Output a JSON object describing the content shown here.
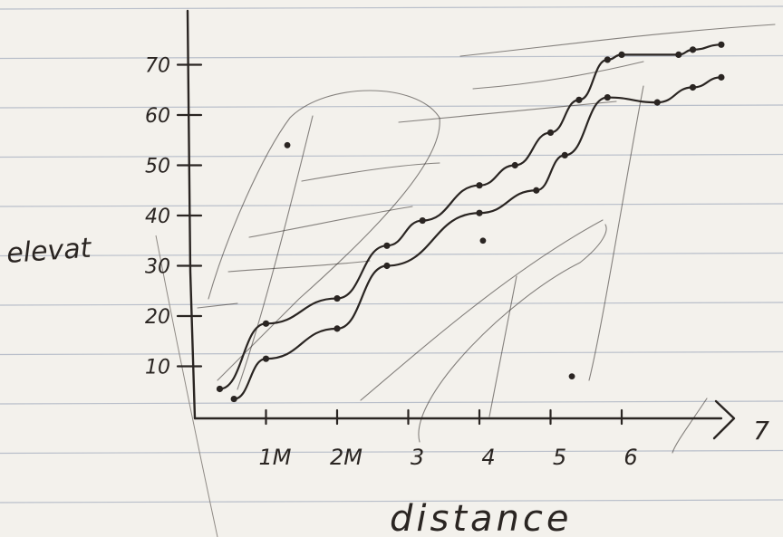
{
  "chart_data": {
    "type": "line",
    "title": "",
    "xlabel": "distance",
    "ylabel": "elevat",
    "x_ticks": [
      {
        "value": 1,
        "label": "1M"
      },
      {
        "value": 2,
        "label": "2M"
      },
      {
        "value": 3,
        "label": "3"
      },
      {
        "value": 4,
        "label": "4"
      },
      {
        "value": 5,
        "label": "5"
      },
      {
        "value": 6,
        "label": "6"
      }
    ],
    "x_end_label": "7",
    "y_ticks": [
      10,
      20,
      30,
      40,
      50,
      60,
      70
    ],
    "xlim": [
      0,
      7.4
    ],
    "ylim": [
      0,
      77
    ],
    "grid": false,
    "series": [
      {
        "x": [
          0.35,
          1.0,
          2.0,
          2.7,
          3.2,
          4.0,
          4.5,
          5.0,
          5.4,
          5.8,
          6.0,
          6.8,
          7.0,
          7.4
        ],
        "values": [
          5.5,
          18.5,
          23.5,
          34,
          39,
          46,
          50,
          56.5,
          63,
          71,
          72,
          72,
          73,
          74
        ]
      },
      {
        "x": [
          0.55,
          1.0,
          2.0,
          2.7,
          4.0,
          4.8,
          5.2,
          5.8,
          6.5,
          7.0,
          7.4
        ],
        "values": [
          3.5,
          11.5,
          17.5,
          30,
          40.5,
          45,
          52,
          63.5,
          62.5,
          65.5,
          67.5
        ]
      }
    ],
    "scattered_points": [
      {
        "x": 1.3,
        "y": 54
      },
      {
        "x": 4.05,
        "y": 35
      },
      {
        "x": 5.3,
        "y": 8
      }
    ]
  },
  "style": {
    "ink": "#2a2522",
    "paper": "#f3f1ec",
    "rule_line": "#b9bfca"
  }
}
